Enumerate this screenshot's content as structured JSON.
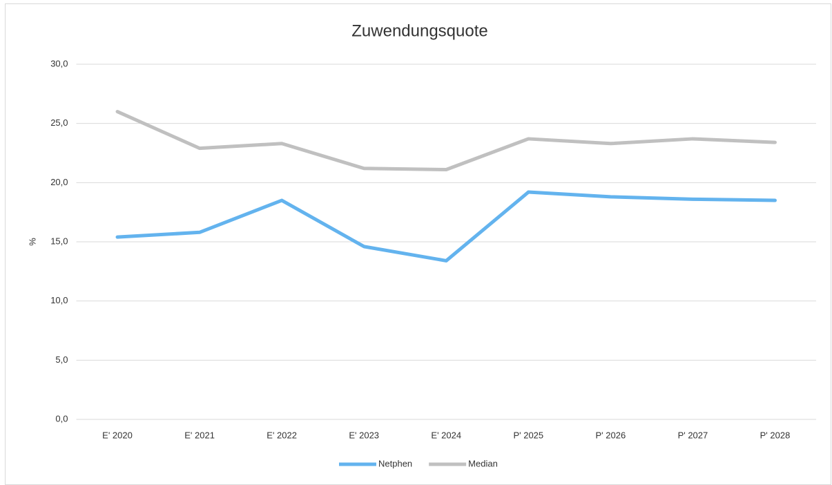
{
  "chart_data": {
    "type": "line",
    "title": "Zuwendungsquote",
    "y_label": "%",
    "categories": [
      "E' 2020",
      "E' 2021",
      "E' 2022",
      "E' 2023",
      "E' 2024",
      "P' 2025",
      "P' 2026",
      "P' 2027",
      "P' 2028"
    ],
    "series": [
      {
        "name": "Netphen",
        "color": "#63b3ee",
        "values": [
          15.4,
          15.8,
          18.5,
          14.6,
          13.4,
          19.2,
          18.8,
          18.6,
          18.5
        ]
      },
      {
        "name": "Median",
        "color": "#c0c0c0",
        "values": [
          26.0,
          22.9,
          23.3,
          21.2,
          21.1,
          23.7,
          23.3,
          23.7,
          23.4
        ]
      }
    ],
    "ylim": [
      0,
      30
    ],
    "yticks": [
      {
        "value": 0,
        "label": "0,0"
      },
      {
        "value": 5,
        "label": "5,0"
      },
      {
        "value": 10,
        "label": "10,0"
      },
      {
        "value": 15,
        "label": "15,0"
      },
      {
        "value": 20,
        "label": "20,0"
      },
      {
        "value": 25,
        "label": "25,0"
      },
      {
        "value": 30,
        "label": "30,0"
      }
    ],
    "grid": true,
    "legend": "bottom"
  }
}
